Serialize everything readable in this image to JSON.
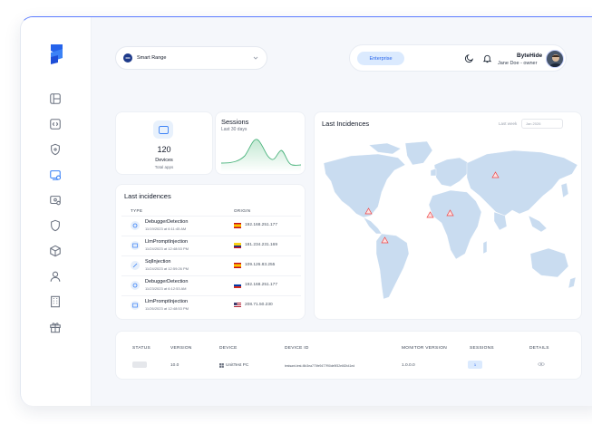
{
  "header": {
    "range_label": "Smart Range",
    "plan_badge": "Enterprise",
    "user_name": "ByteHide",
    "user_role": "Jane Doe - owner"
  },
  "sidebar": {
    "items": [
      {
        "icon": "dashboard-icon"
      },
      {
        "icon": "code-icon"
      },
      {
        "icon": "shield-lock-icon"
      },
      {
        "icon": "device-monitor-icon",
        "active": true
      },
      {
        "icon": "device-settings-icon"
      },
      {
        "icon": "shield-icon"
      },
      {
        "icon": "cube-icon"
      },
      {
        "icon": "user-icon"
      },
      {
        "icon": "building-icon"
      },
      {
        "icon": "gift-icon"
      }
    ]
  },
  "devices": {
    "count": "120",
    "label": "Devices",
    "sub": "Total apps"
  },
  "sessions": {
    "title": "Sessions",
    "sub": "Last 30 days"
  },
  "map": {
    "title": "Last Incidences",
    "range_label": "Last week",
    "range_value": "Jan 2026"
  },
  "last_incidences": {
    "title": "Last incidences",
    "col_type": "TYPE",
    "col_origin": "ORIGIN",
    "rows": [
      {
        "type": "DebuggerDetection",
        "date": "11/19/2023 at 6:11:45 AM",
        "flag": "es",
        "ip": "192.168.251.177"
      },
      {
        "type": "LlmPromptInjection",
        "date": "11/24/2023 at 12:48:53 PM",
        "flag": "co",
        "ip": "181.234.231.169"
      },
      {
        "type": "SqlInjection",
        "date": "11/24/2023 at 12:59:26 PM",
        "flag": "es",
        "ip": "109.126.83.255"
      },
      {
        "type": "DebuggerDetection",
        "date": "11/23/2023 at 6:12:53 AM",
        "flag": "ru",
        "ip": "192.168.251.177"
      },
      {
        "type": "LlmPromptInjection",
        "date": "11/26/2023 at 12:48:53 PM",
        "flag": "us",
        "ip": "208.71.50.230"
      }
    ]
  },
  "devices_table": {
    "headers": [
      "STATUS",
      "VERSION",
      "DEVICE",
      "DEVICE ID",
      "MONITOR VERSION",
      "SESSIONS",
      "DETAILS"
    ],
    "row": {
      "version": "10.0",
      "device": "UnitTest PC",
      "device_id": "testsant-test-f4b3ea770fe9477f90de9f32e6f2b41ed",
      "monitor_version": "1.0.0.0",
      "sessions": "1"
    }
  }
}
